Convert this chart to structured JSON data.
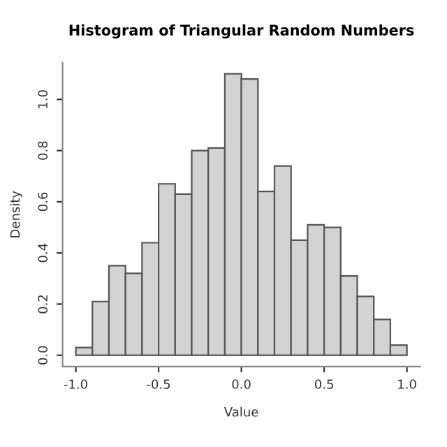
{
  "chart_data": {
    "type": "histogram",
    "title": "Histogram of Triangular Random Numbers",
    "xlabel": "Value",
    "ylabel": "Density",
    "bins": [
      -1.0,
      -0.9,
      -0.8,
      -0.7,
      -0.6,
      -0.5,
      -0.4,
      -0.3,
      -0.2,
      -0.1,
      0.0,
      0.1,
      0.2,
      0.3,
      0.4,
      0.5,
      0.6,
      0.7,
      0.8,
      0.9,
      1.0
    ],
    "values": [
      0.03,
      0.21,
      0.35,
      0.32,
      0.44,
      0.67,
      0.63,
      0.8,
      0.81,
      1.1,
      1.08,
      0.64,
      0.74,
      0.45,
      0.51,
      0.5,
      0.31,
      0.23,
      0.14,
      0.04
    ],
    "color": "#d3d3d3",
    "xlim": [
      -1.08,
      1.08
    ],
    "ylim": [
      -0.044,
      1.144
    ],
    "xticks": [
      {
        "value": -1.0,
        "label": "-1.0"
      },
      {
        "value": -0.5,
        "label": "-0.5"
      },
      {
        "value": 0.0,
        "label": "0.0"
      },
      {
        "value": 0.5,
        "label": "0.5"
      },
      {
        "value": 1.0,
        "label": "1.0"
      }
    ],
    "yticks": [
      {
        "value": 0.0,
        "label": "0.0"
      },
      {
        "value": 0.2,
        "label": "0.2"
      },
      {
        "value": 0.4,
        "label": "0.4"
      },
      {
        "value": 0.6,
        "label": "0.6"
      },
      {
        "value": 0.8,
        "label": "0.8"
      },
      {
        "value": 1.0,
        "label": "1.0"
      }
    ],
    "grid": false
  }
}
